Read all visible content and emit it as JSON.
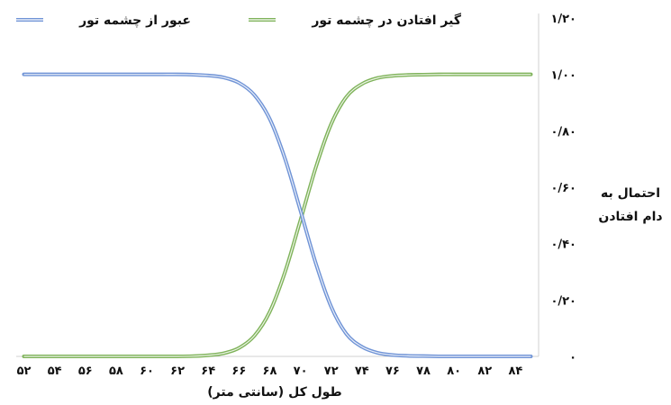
{
  "chart_data": {
    "type": "line",
    "xlabel": "طول کل (سانتی متر)",
    "ylabel_line1": "احتمال به",
    "ylabel_line2": "دام افتادن",
    "x_ticks": [
      52,
      54,
      56,
      58,
      60,
      62,
      64,
      66,
      68,
      70,
      72,
      74,
      76,
      78,
      80,
      82,
      84
    ],
    "x_tick_labels": [
      "۵۲",
      "۵۴",
      "۵۶",
      "۵۸",
      "۶۰",
      "۶۲",
      "۶۴",
      "۶۶",
      "۶۸",
      "۷۰",
      "۷۲",
      "۷۴",
      "۷۶",
      "۷۸",
      "۸۰",
      "۸۲",
      "۸۴"
    ],
    "y_ticks": [
      0,
      0.2,
      0.4,
      0.6,
      0.8,
      1.0,
      1.2
    ],
    "y_tick_labels": [
      "۰",
      "۰/۲۰",
      "۰/۴۰",
      "۰/۶۰",
      "۰/۸۰",
      "۱/۰۰",
      "۱/۲۰"
    ],
    "xlim": [
      51.5,
      85.5
    ],
    "ylim": [
      0,
      1.2
    ],
    "grid": false,
    "legend_position": "top",
    "x": [
      52,
      53,
      54,
      55,
      56,
      57,
      58,
      59,
      60,
      61,
      62,
      63,
      64,
      65,
      66,
      67,
      68,
      69,
      70,
      71,
      72,
      73,
      74,
      75,
      76,
      77,
      78,
      79,
      80,
      81,
      82,
      83,
      84,
      85
    ],
    "series": [
      {
        "name": "گیر افتادن در چشمه تور",
        "color": "#7fb35a",
        "values": [
          0,
          0,
          0,
          0,
          0,
          0,
          0,
          0,
          0,
          0,
          0,
          0.001,
          0.004,
          0.011,
          0.03,
          0.073,
          0.158,
          0.3,
          0.483,
          0.67,
          0.824,
          0.921,
          0.966,
          0.987,
          0.995,
          0.998,
          0.999,
          1,
          1,
          1,
          1,
          1,
          1,
          1
        ]
      },
      {
        "name": "عبور از چشمه تور",
        "color": "#6f93d6",
        "values": [
          1,
          1,
          1,
          1,
          1,
          1,
          1,
          1,
          1,
          1,
          1,
          0.999,
          0.996,
          0.989,
          0.97,
          0.927,
          0.842,
          0.7,
          0.517,
          0.33,
          0.176,
          0.079,
          0.034,
          0.013,
          0.005,
          0.002,
          0.001,
          0,
          0,
          0,
          0,
          0,
          0,
          0
        ]
      }
    ]
  }
}
